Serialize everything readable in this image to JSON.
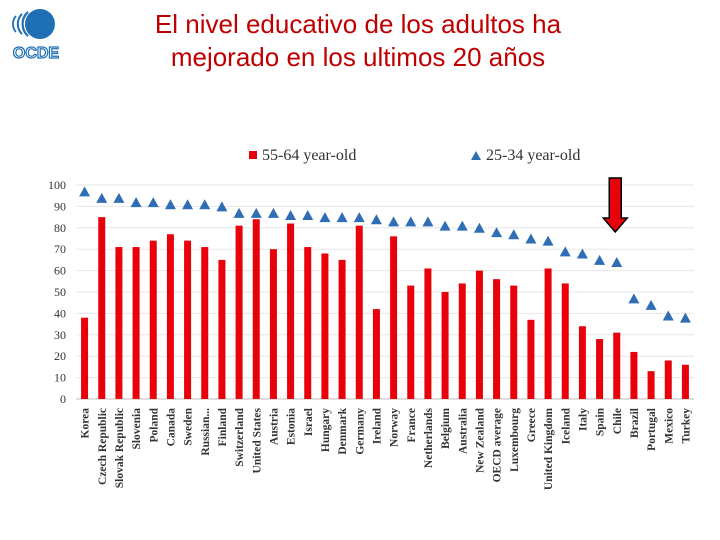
{
  "logo": {
    "text": "OCDE",
    "icon": "ocde-logo-icon",
    "color": "#1f6fb4"
  },
  "title": {
    "line1": "El nivel educativo de los adultos ha",
    "line2": "mejorado en los ultimos 20 años"
  },
  "colors": {
    "bar": "#e8000b",
    "triangle": "#2f6eb5",
    "highlight_arrow": "#e8000b",
    "title": "#c00000"
  },
  "chart_data": {
    "type": "bar",
    "ylim": [
      0,
      100
    ],
    "yticks": [
      0,
      10,
      20,
      30,
      40,
      50,
      60,
      70,
      80,
      90,
      100
    ],
    "grid": true,
    "legend_position": "top",
    "annotations": [
      {
        "type": "arrow",
        "points_to": "Chile",
        "color": "#e8000b"
      }
    ],
    "categories": [
      "Korea",
      "Czech Republic",
      "Slovak Republic",
      "Slovenia",
      "Poland",
      "Canada",
      "Sweden",
      "Russian...",
      "Finland",
      "Switzerland",
      "United States",
      "Austria",
      "Estonia",
      "Israel",
      "Hungary",
      "Denmark",
      "Germany",
      "Ireland",
      "Norway",
      "France",
      "Netherlands",
      "Belgium",
      "Australia",
      "New Zealand",
      "OECD average",
      "Luxembourg",
      "Greece",
      "United Kingdom",
      "Iceland",
      "Italy",
      "Spain",
      "Chile",
      "Brazil",
      "Portugal",
      "Mexico",
      "Turkey"
    ],
    "series": [
      {
        "name": "55-64 year-old",
        "type": "bar",
        "values": [
          38,
          85,
          71,
          71,
          74,
          77,
          74,
          71,
          65,
          81,
          84,
          70,
          82,
          71,
          68,
          65,
          81,
          42,
          76,
          53,
          61,
          50,
          54,
          60,
          56,
          53,
          37,
          61,
          54,
          34,
          28,
          31,
          22,
          13,
          18,
          16
        ]
      },
      {
        "name": "25-34 year-old",
        "type": "triangle",
        "values": [
          97,
          94,
          94,
          92,
          92,
          91,
          91,
          91,
          90,
          87,
          87,
          87,
          86,
          86,
          85,
          85,
          85,
          84,
          83,
          83,
          83,
          81,
          81,
          80,
          78,
          77,
          75,
          74,
          69,
          68,
          65,
          64,
          47,
          44,
          39,
          38
        ]
      }
    ]
  }
}
